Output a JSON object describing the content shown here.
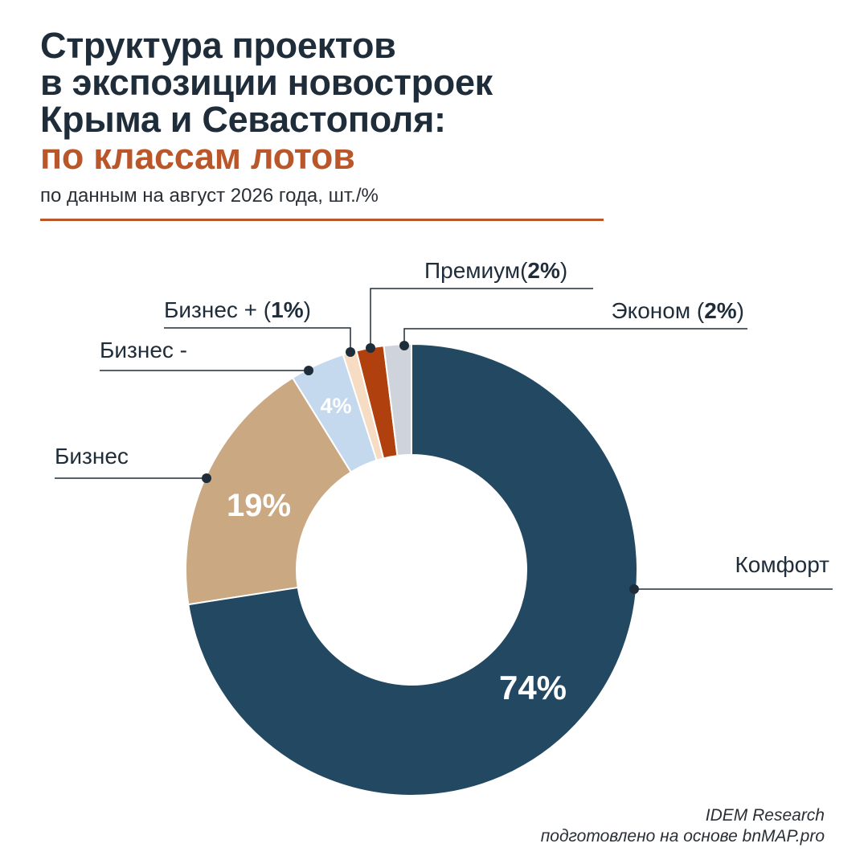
{
  "header": {
    "title_line1": "Структура проектов",
    "title_line2": "в экспозиции новостроек",
    "title_line3": "Крыма и Севастополя:",
    "title_accent": "по классам лотов",
    "subtitle": "по данным на август 2026 года, шт./%"
  },
  "colors": {
    "accent": "#b9572a",
    "komfort": "#224862",
    "biznes": "#c9a882",
    "biznes_minus": "#c4d8ee",
    "biznes_plus": "#f5dcc3",
    "premium": "#b0400e",
    "ekonom": "#cfd4dc"
  },
  "chart_data": {
    "type": "pie",
    "donut": true,
    "title": "Структура проектов в экспозиции новостроек Крыма и Севастополя: по классам лотов",
    "slices": [
      {
        "label": "Комфорт",
        "value": 74,
        "display": "74%",
        "color": "#224862"
      },
      {
        "label": "Бизнес",
        "value": 19,
        "display": "19%",
        "color": "#c9a882"
      },
      {
        "label": "Бизнес -",
        "value": 4,
        "display": "4%",
        "color": "#c4d8ee"
      },
      {
        "label": "Бизнес +",
        "value": 1,
        "display": "1%",
        "color": "#f5dcc3"
      },
      {
        "label": "Премиум",
        "value": 2,
        "display": "2%",
        "color": "#b0400e"
      },
      {
        "label": "Эконом",
        "value": 2,
        "display": "2%",
        "color": "#cfd4dc"
      }
    ]
  },
  "labels": {
    "komfort": "Комфорт",
    "biznes": "Бизнес",
    "biznes_minus": "Бизнес -",
    "biznes_plus_name": "Бизнес + (",
    "biznes_plus_value": "1%",
    "biznes_plus_close": ")",
    "premium_name": "Премиум(",
    "premium_value": "2%",
    "premium_close": ")",
    "ekonom_name": "Эконом (",
    "ekonom_value": "2%",
    "ekonom_close": ")"
  },
  "source": {
    "line1": "IDEM Research",
    "line2": "подготовлено на основе bnMAP.pro"
  }
}
